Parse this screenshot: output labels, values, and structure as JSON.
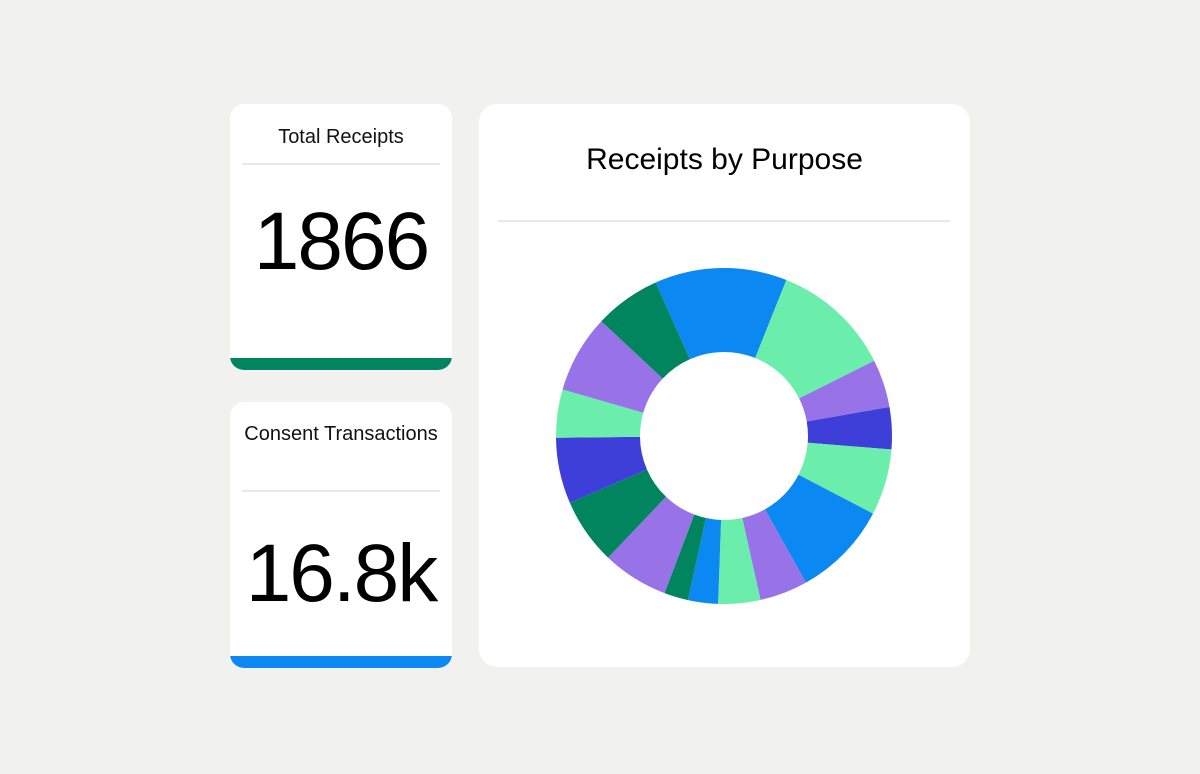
{
  "stats": {
    "total_receipts": {
      "label": "Total Receipts",
      "value": "1866",
      "accent": "#00855f"
    },
    "consent_transactions": {
      "label": "Consent Transactions",
      "value": "16.8k",
      "accent": "#0b88f2"
    }
  },
  "chart": {
    "title": "Receipts by Purpose"
  },
  "chart_data": {
    "type": "pie",
    "title": "Receipts by Purpose",
    "donut": true,
    "legend": "none",
    "values": [
      110,
      100,
      40,
      35,
      55,
      80,
      40,
      35,
      25,
      20,
      55,
      55,
      55,
      40,
      65,
      55
    ],
    "colors": [
      "#0b88f2",
      "#6beeac",
      "#9873e8",
      "#3e3fd9",
      "#6beeac",
      "#0b88f2",
      "#9873e8",
      "#6beeac",
      "#0b88f2",
      "#00855f",
      "#9873e8",
      "#00855f",
      "#3e3fd9",
      "#6beeac",
      "#9873e8",
      "#00855f"
    ]
  }
}
